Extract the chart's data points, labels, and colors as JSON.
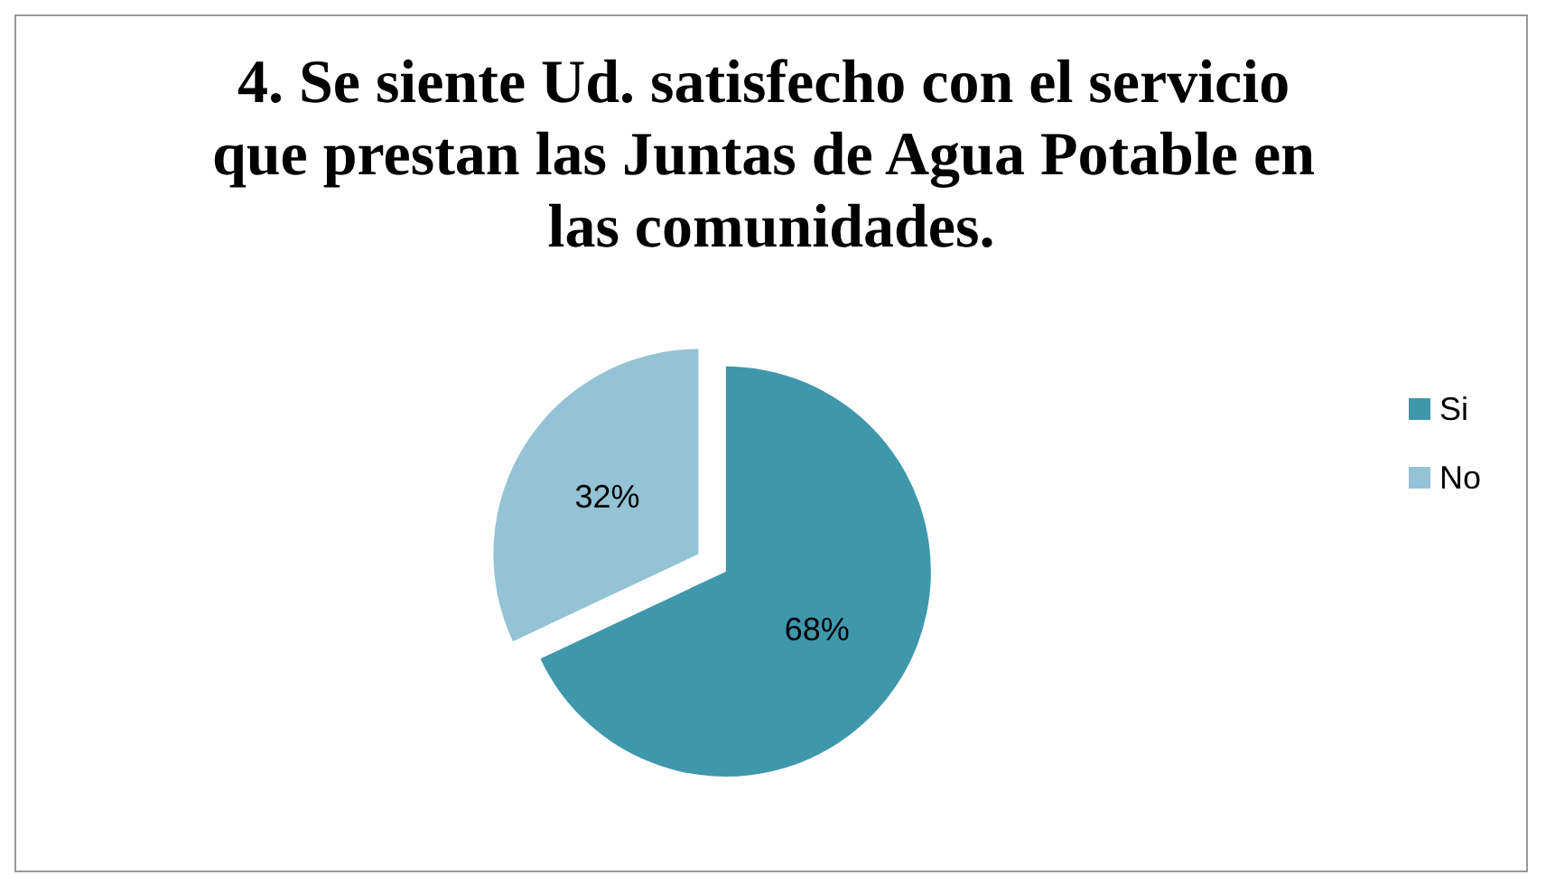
{
  "chart_data": {
    "type": "pie",
    "title": "4. Se siente Ud. satisfecho con el servicio que prestan las Juntas de Agua Potable en las comunidades.",
    "categories": [
      "Si",
      "No"
    ],
    "values": [
      68,
      32
    ],
    "colors": [
      "#3f97ac",
      "#93c3d4"
    ],
    "value_labels": [
      "68%",
      "32%"
    ],
    "legend": "right"
  }
}
